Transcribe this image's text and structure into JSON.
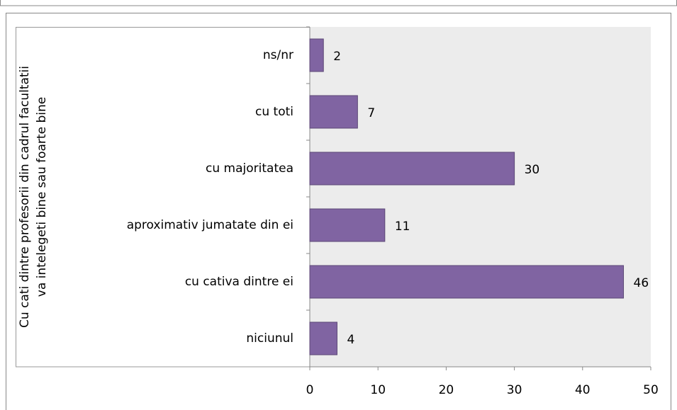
{
  "chart_data": {
    "type": "bar",
    "orientation": "horizontal",
    "ylabel": [
      "Cu cati dintre profesorii din cadrul facultatii",
      "va intelegeti bine sau foarte bine"
    ],
    "categories": [
      "ns/nr",
      "cu toti",
      "cu majoritatea",
      "aproximativ jumatate din ei",
      "cu cativa dintre ei",
      "niciunul"
    ],
    "values": [
      2,
      7,
      30,
      11,
      46,
      4
    ],
    "color": "#8064a2",
    "xlim": [
      0,
      50
    ],
    "xticks": [
      0,
      10,
      20,
      30,
      40,
      50
    ],
    "grid": false
  }
}
